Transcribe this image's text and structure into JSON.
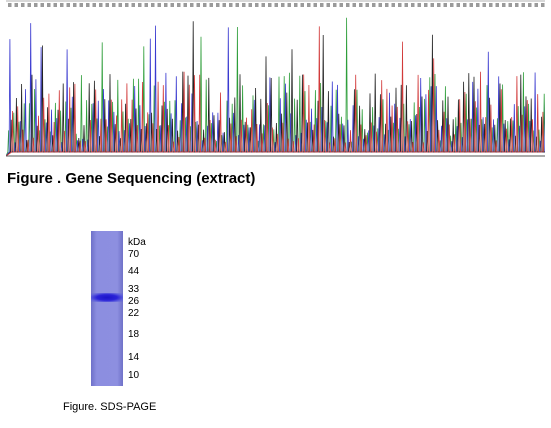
{
  "sequence_caption": "Figure . Gene Sequencing (extract)",
  "gel": {
    "kda_label": "kDa",
    "markers": [
      "70",
      "44",
      "33",
      "26",
      "22",
      "18",
      "14",
      "10"
    ],
    "caption": "Figure. SDS-PAGE"
  },
  "colors": {
    "trace_a": "#2e9e3a",
    "trace_c": "#3a3ad0",
    "trace_g": "#222222",
    "trace_t": "#d23a3a",
    "gel_lane": "#8c8ee0",
    "gel_band": "#2520d0"
  }
}
